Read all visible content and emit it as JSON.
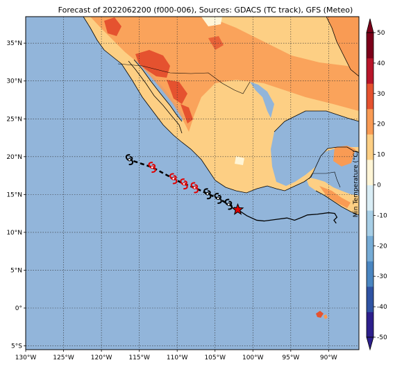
{
  "title": "Forecast of 2022062200 (f000-006), Sources: GDACS (TC track), GFS (Meteo)",
  "map": {
    "lon_range": [
      -130,
      -86
    ],
    "lat_range": [
      -5.5,
      38.5
    ],
    "lon_ticks": [
      "130°W",
      "125°W",
      "120°W",
      "115°W",
      "110°W",
      "105°W",
      "100°W",
      "95°W",
      "90°W"
    ],
    "lat_ticks": [
      "5°S",
      "0°",
      "5°N",
      "10°N",
      "15°N",
      "20°N",
      "25°N",
      "30°N",
      "35°N"
    ],
    "ocean_color": "#92b5da",
    "gridlines": true
  },
  "colorbar": {
    "label": "Min Temperature (°C)",
    "ticks": [
      "-50",
      "-40",
      "-30",
      "-20",
      "-10",
      "0",
      "10",
      "20",
      "30",
      "40",
      "50"
    ],
    "colors": [
      "#2d1f8c",
      "#2f53a3",
      "#4a86c1",
      "#76acd6",
      "#a7cee6",
      "#d9edf5",
      "#fff5d6",
      "#fdcf84",
      "#f99b54",
      "#e5522f",
      "#b8152a",
      "#7c001a"
    ]
  },
  "chart_data": {
    "type": "map",
    "variable": "Min Temperature (°C)",
    "tc_track": {
      "current_position": {
        "lon": -102.0,
        "lat": 13.0
      },
      "observed_track": [
        {
          "lon": -102.0,
          "lat": 13.0
        },
        {
          "lon": -100.8,
          "lat": 12.2
        },
        {
          "lon": -99.5,
          "lat": 11.6
        },
        {
          "lon": -98.5,
          "lat": 11.5
        },
        {
          "lon": -97.0,
          "lat": 11.7
        },
        {
          "lon": -95.5,
          "lat": 11.9
        },
        {
          "lon": -94.5,
          "lat": 11.6
        },
        {
          "lon": -93.5,
          "lat": 12.0
        },
        {
          "lon": -92.8,
          "lat": 12.3
        },
        {
          "lon": -91.5,
          "lat": 12.4
        },
        {
          "lon": -90.0,
          "lat": 12.6
        },
        {
          "lon": -89.2,
          "lat": 12.5
        },
        {
          "lon": -88.9,
          "lat": 12.0
        },
        {
          "lon": -89.3,
          "lat": 11.6
        },
        {
          "lon": -89.0,
          "lat": 11.2
        }
      ],
      "forecast_points": [
        {
          "lon": -103.2,
          "lat": 13.7,
          "color": "black"
        },
        {
          "lon": -104.6,
          "lat": 14.5,
          "color": "black"
        },
        {
          "lon": -106.0,
          "lat": 15.1,
          "color": "black"
        },
        {
          "lon": -107.7,
          "lat": 15.9,
          "color": "red"
        },
        {
          "lon": -109.1,
          "lat": 16.4,
          "color": "red"
        },
        {
          "lon": -110.5,
          "lat": 17.1,
          "color": "red"
        },
        {
          "lon": -113.3,
          "lat": 18.6,
          "color": "red"
        },
        {
          "lon": -116.3,
          "lat": 19.6,
          "color": "black"
        }
      ]
    }
  }
}
